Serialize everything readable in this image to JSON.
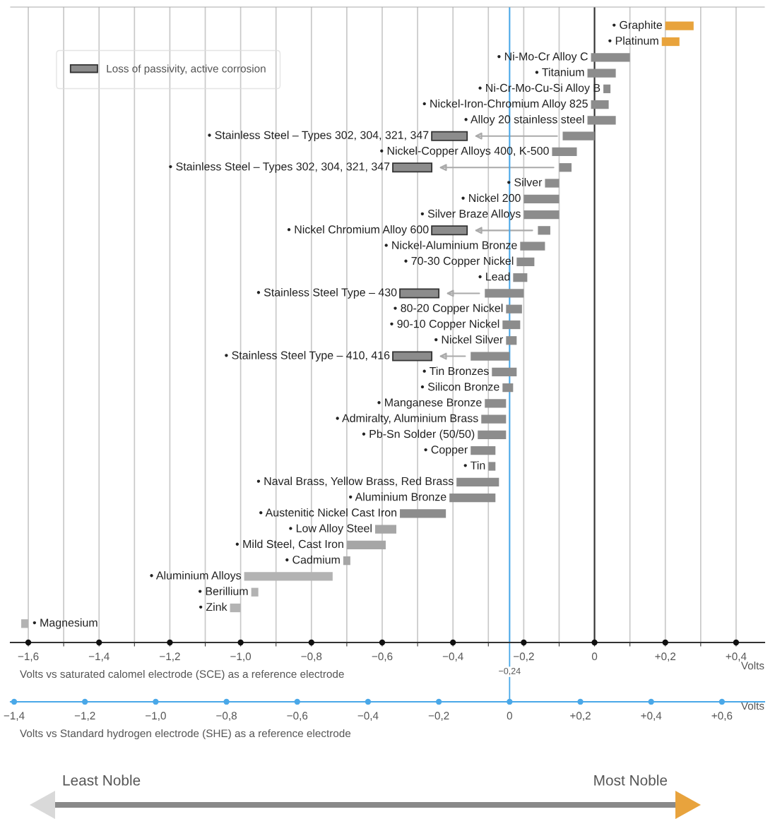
{
  "chart_data": {
    "type": "bar",
    "orientation": "horizontal",
    "categories": [
      "• Graphite",
      "• Platinum",
      "• Ni-Mo-Cr Alloy C",
      "• Titanium",
      "• Ni-Cr-Mo-Cu-Si Alloy B",
      "• Nickel-Iron-Chromium Alloy 825",
      "• Alloy 20 stainless steel",
      "• Stainless Steel – Types 302, 304, 321, 347",
      "• Nickel-Copper Alloys 400, K-500",
      "• Stainless Steel – Types 302, 304, 321, 347",
      "• Silver",
      "• Nickel 200",
      "• Silver Braze Alloys",
      "• Nickel Chromium Alloy 600",
      "• Nickel-Aluminium Bronze",
      "• 70-30 Copper Nickel",
      "• Lead",
      "• Stainless Steel Type – 430",
      "• 80-20 Copper Nickel",
      "• 90-10 Copper Nickel",
      "• Nickel Silver",
      "• Stainless Steel Type – 410, 416",
      "• Tin Bronzes",
      "• Silicon Bronze",
      "• Manganese Bronze",
      "• Admiralty, Aluminium Brass",
      "• Pb-Sn Solder (50/50)",
      "• Copper",
      "• Tin",
      "• Naval Brass, Yellow Brass, Red Brass",
      "• Aluminium Bronze",
      "• Austenitic Nickel Cast Iron",
      "• Low Alloy Steel",
      "• Mild Steel, Cast Iron",
      "• Cadmium",
      "• Aluminium Alloys",
      "• Berillium",
      "• Zink",
      "• Magnesium"
    ],
    "series": [
      {
        "color": "#8c8c8c",
        "colors": [
          "#e8a33c",
          "#e8a33c",
          "#8c8c8c",
          "#8c8c8c",
          "#8c8c8c",
          "#8c8c8c",
          "#8c8c8c",
          "#8c8c8c",
          "#8c8c8c",
          "#8c8c8c",
          "#8c8c8c",
          "#8c8c8c",
          "#8c8c8c",
          "#8c8c8c",
          "#8c8c8c",
          "#8c8c8c",
          "#8c8c8c",
          "#8c8c8c",
          "#8c8c8c",
          "#8c8c8c",
          "#8c8c8c",
          "#8c8c8c",
          "#8c8c8c",
          "#8c8c8c",
          "#8c8c8c",
          "#8c8c8c",
          "#8c8c8c",
          "#8c8c8c",
          "#8c8c8c",
          "#8c8c8c",
          "#8c8c8c",
          "#8c8c8c",
          "#a6a6a6",
          "#a6a6a6",
          "#a6a6a6",
          "#b3b3b3",
          "#b3b3b3",
          "#b3b3b3",
          "#b3b3b3"
        ],
        "base": [
          0.2,
          0.19,
          -0.01,
          -0.02,
          0.025,
          -0.01,
          -0.02,
          -0.09,
          -0.12,
          -0.1,
          -0.14,
          -0.2,
          -0.2,
          -0.16,
          -0.21,
          -0.22,
          -0.23,
          -0.31,
          -0.25,
          -0.26,
          -0.25,
          -0.35,
          -0.29,
          -0.26,
          -0.31,
          -0.32,
          -0.33,
          -0.35,
          -0.3,
          -0.39,
          -0.41,
          -0.55,
          -0.62,
          -0.7,
          -0.71,
          -0.99,
          -0.97,
          -1.03,
          -1.62
        ],
        "values": [
          0.08,
          0.05,
          0.11,
          0.08,
          0.02,
          0.05,
          0.08,
          0.09,
          0.07,
          0.035,
          0.04,
          0.1,
          0.1,
          0.035,
          0.07,
          0.05,
          0.04,
          0.11,
          0.045,
          0.05,
          0.03,
          0.11,
          0.07,
          0.03,
          0.06,
          0.07,
          0.08,
          0.07,
          0.02,
          0.12,
          0.13,
          0.13,
          0.06,
          0.11,
          0.02,
          0.25,
          0.02,
          0.03,
          0.02
        ]
      },
      {
        "name": "Loss of passivity, active corrosion",
        "color": "#8c8c8c",
        "base": [
          null,
          null,
          null,
          null,
          null,
          null,
          null,
          -0.46,
          null,
          -0.57,
          null,
          null,
          null,
          -0.46,
          null,
          null,
          null,
          -0.55,
          null,
          null,
          null,
          -0.57,
          null,
          null,
          null,
          null,
          null,
          null,
          null,
          null,
          null,
          null,
          null,
          null,
          null,
          null,
          null,
          null,
          null
        ],
        "values": [
          null,
          null,
          null,
          null,
          null,
          null,
          null,
          0.1,
          null,
          0.11,
          null,
          null,
          null,
          0.1,
          null,
          null,
          null,
          0.11,
          null,
          null,
          null,
          0.11,
          null,
          null,
          null,
          null,
          null,
          null,
          null,
          null,
          null,
          null,
          null,
          null,
          null,
          null,
          null,
          null,
          null
        ]
      }
    ],
    "xlim": [
      -1.65,
      0.48
    ],
    "xticks": [
      {
        "value": -1.6,
        "label": "−1,6"
      },
      {
        "value": -1.5,
        "label": null
      },
      {
        "value": -1.4,
        "label": "−1,4"
      },
      {
        "value": -1.3,
        "label": null
      },
      {
        "value": -1.2,
        "label": "−1,2"
      },
      {
        "value": -1.1,
        "label": null
      },
      {
        "value": -1.0,
        "label": "−1,0"
      },
      {
        "value": -0.9,
        "label": null
      },
      {
        "value": -0.8,
        "label": "−0,8"
      },
      {
        "value": -0.7,
        "label": null
      },
      {
        "value": -0.6,
        "label": "−0,6"
      },
      {
        "value": -0.5,
        "label": null
      },
      {
        "value": -0.4,
        "label": "−0,4"
      },
      {
        "value": -0.3,
        "label": null
      },
      {
        "value": -0.2,
        "label": "−0,2"
      },
      {
        "value": -0.1,
        "label": null
      },
      {
        "value": 0,
        "label": "0"
      },
      {
        "value": 0.1,
        "label": null
      },
      {
        "value": 0.2,
        "label": "+0,2"
      },
      {
        "value": 0.3,
        "label": null
      },
      {
        "value": 0.4,
        "label": "+0,4"
      }
    ],
    "xlabel": "Volts",
    "x2lim": [
      -1.41,
      0.72
    ],
    "x2ticks": [
      {
        "value": -1.4,
        "label": "−1,4"
      },
      {
        "value": -1.2,
        "label": "−1,2"
      },
      {
        "value": -1.0,
        "label": "−1,0"
      },
      {
        "value": -0.8,
        "label": "−0,8"
      },
      {
        "value": -0.6,
        "label": "−0,6"
      },
      {
        "value": -0.4,
        "label": "−0,4"
      },
      {
        "value": -0.2,
        "label": "−0,2"
      },
      {
        "value": 0,
        "label": "0"
      },
      {
        "value": 0.2,
        "label": "+0,2"
      },
      {
        "value": 0.4,
        "label": "+0,4"
      },
      {
        "value": 0.6,
        "label": "+0,6"
      }
    ],
    "x2label": "Volts",
    "ref_lines": [
      {
        "axis": "x",
        "value": -0.24,
        "label": "−0,24",
        "color": "#4aa8e8"
      },
      {
        "axis": "x",
        "value": 0,
        "color": "#333333"
      }
    ],
    "annotations": [
      "Volts vs saturated calomel electrode (SCE) as a reference electrode",
      "Volts vs Standard hydrogen electrode (SHE) as a reference electrode",
      "Least Noble",
      "Most Noble"
    ],
    "grid": "x",
    "legend": "top left",
    "tick_labels": "x"
  }
}
